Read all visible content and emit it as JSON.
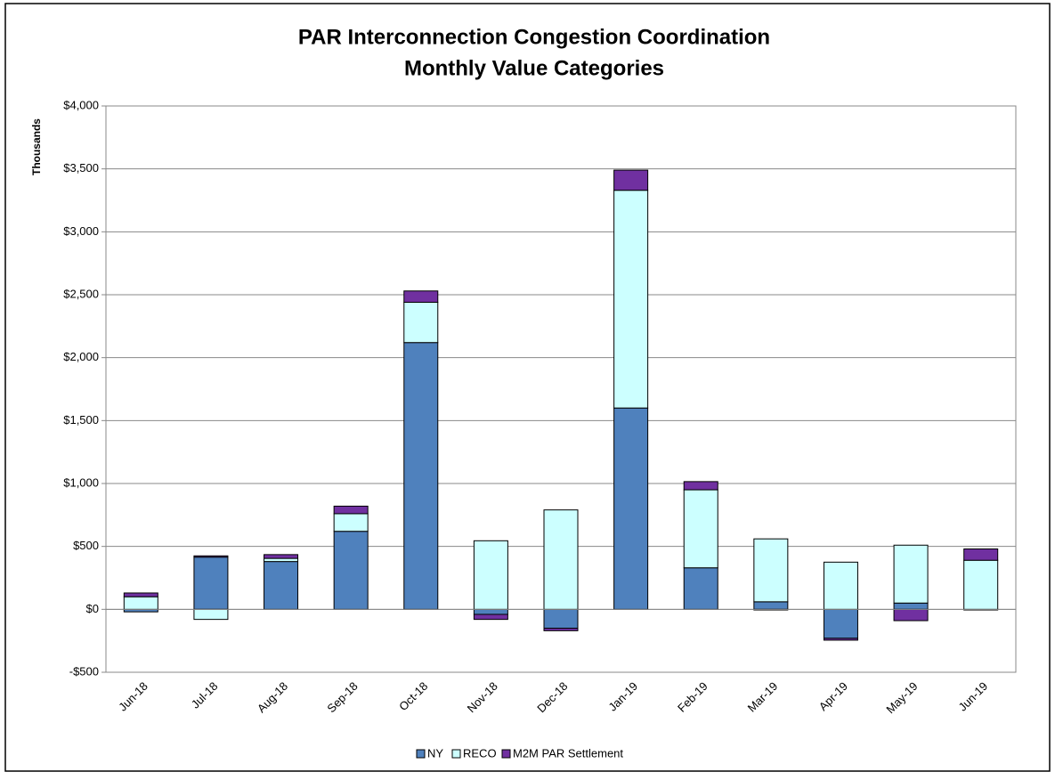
{
  "chart_data": {
    "type": "stacked_bar",
    "title": "PAR Interconnection Congestion Coordination",
    "subtitle": "Monthly Value Categories",
    "y_label": "Thousands",
    "categories": [
      "Jun-18",
      "Jul-18",
      "Aug-18",
      "Sep-18",
      "Oct-18",
      "Nov-18",
      "Dec-18",
      "Jan-19",
      "Feb-19",
      "Mar-19",
      "Apr-19",
      "May-19",
      "Jun-19"
    ],
    "series": [
      {
        "name": "NY",
        "color": "#4f81bd",
        "values": [
          -20,
          415,
          380,
          620,
          2120,
          -40,
          -150,
          1600,
          330,
          60,
          -230,
          50,
          -5
        ]
      },
      {
        "name": "RECO",
        "color": "#ccffff",
        "values": [
          100,
          -80,
          25,
          140,
          320,
          545,
          790,
          1730,
          620,
          500,
          375,
          460,
          390
        ]
      },
      {
        "name": "M2M PAR Settlement",
        "color": "#7030a0",
        "values": [
          30,
          10,
          30,
          60,
          90,
          -40,
          -20,
          160,
          65,
          -5,
          -15,
          -90,
          90
        ]
      }
    ],
    "ylim": [
      -500,
      4000
    ],
    "yticks": [
      {
        "value": -500,
        "label": "-$500"
      },
      {
        "value": 0,
        "label": "$0"
      },
      {
        "value": 500,
        "label": "$500"
      },
      {
        "value": 1000,
        "label": "$1,000"
      },
      {
        "value": 1500,
        "label": "$1,500"
      },
      {
        "value": 2000,
        "label": "$2,000"
      },
      {
        "value": 2500,
        "label": "$2,500"
      },
      {
        "value": 3000,
        "label": "$3,000"
      },
      {
        "value": 3500,
        "label": "$3,500"
      },
      {
        "value": 4000,
        "label": "$4,000"
      }
    ],
    "grid": true,
    "legend": "bottom"
  }
}
